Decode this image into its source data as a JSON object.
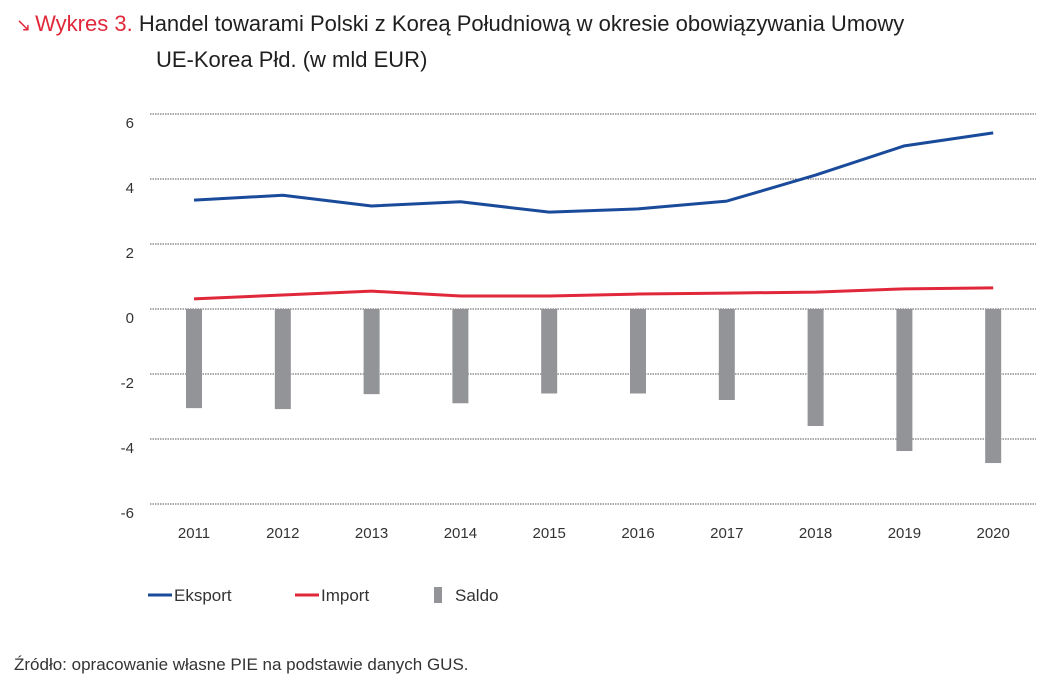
{
  "header": {
    "arrow_icon": "↘",
    "label": "Wykres 3.",
    "title_line1": "Handel towarami Polski z Koreą Południową w okresie obowiązywania Umowy",
    "title_line2": "UE-Korea Płd. (w mld EUR)"
  },
  "source": "Źródło: opracowanie własne PIE na podstawie danych GUS.",
  "colors": {
    "eksport": "#1a4b9b",
    "import": "#e1283a",
    "saldo": "#939497",
    "grid": "#555555"
  },
  "chart_data": {
    "type": "bar+line",
    "title": "Handel towarami Polski z Koreą Południową w okresie obowiązywania Umowy UE-Korea Płd. (w mld EUR)",
    "xlabel": "",
    "ylabel": "",
    "categories": [
      "2011",
      "2012",
      "2013",
      "2014",
      "2015",
      "2016",
      "2017",
      "2018",
      "2019",
      "2020"
    ],
    "ylim": [
      -6,
      6
    ],
    "yticks": [
      6,
      4,
      2,
      0,
      -2,
      -4,
      -6
    ],
    "grid": true,
    "legend_position": "bottom-left",
    "series": [
      {
        "name": "Eksport",
        "type": "line",
        "values": [
          3.35,
          3.5,
          3.17,
          3.3,
          2.98,
          3.08,
          3.32,
          4.12,
          5.02,
          5.42
        ]
      },
      {
        "name": "Import",
        "type": "line",
        "values": [
          0.31,
          0.43,
          0.55,
          0.4,
          0.4,
          0.46,
          0.49,
          0.52,
          0.62,
          0.65
        ]
      },
      {
        "name": "Saldo",
        "type": "bar",
        "values": [
          -3.05,
          -3.08,
          -2.62,
          -2.9,
          -2.6,
          -2.6,
          -2.8,
          -3.6,
          -4.37,
          -4.74
        ]
      }
    ]
  }
}
